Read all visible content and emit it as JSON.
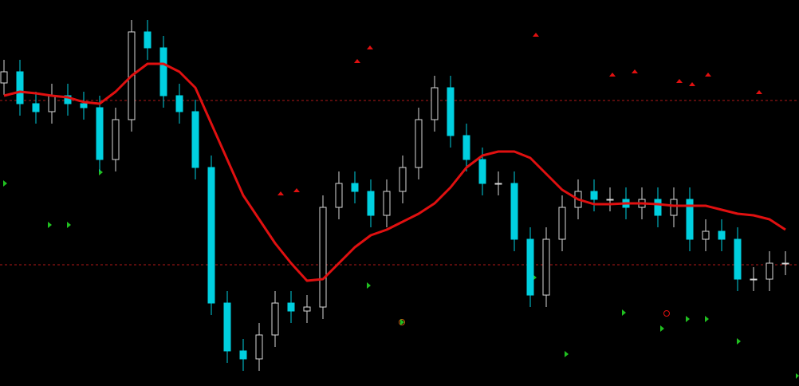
{
  "chart_data": {
    "type": "candlestick",
    "ylim": [
      0,
      484
    ],
    "open": [
      380,
      394,
      354,
      344,
      364,
      354,
      349,
      284,
      334,
      444,
      424,
      364,
      344,
      274,
      104,
      44,
      34,
      64,
      104,
      94,
      99,
      224,
      254,
      244,
      214,
      244,
      274,
      334,
      374,
      314,
      284,
      254,
      254,
      184,
      114,
      184,
      224,
      244,
      234,
      234,
      224,
      234,
      214,
      234,
      184,
      194,
      184,
      134,
      134,
      154
    ],
    "high": [
      409,
      409,
      369,
      379,
      379,
      369,
      364,
      349,
      459,
      459,
      439,
      379,
      359,
      289,
      119,
      59,
      79,
      119,
      119,
      114,
      239,
      269,
      269,
      259,
      259,
      289,
      349,
      389,
      389,
      329,
      299,
      269,
      269,
      199,
      199,
      239,
      259,
      259,
      249,
      249,
      249,
      249,
      249,
      249,
      209,
      209,
      199,
      149,
      169,
      169
    ],
    "low": [
      365,
      339,
      329,
      329,
      339,
      334,
      269,
      269,
      319,
      409,
      349,
      329,
      259,
      89,
      29,
      19,
      19,
      49,
      79,
      79,
      84,
      209,
      229,
      199,
      199,
      229,
      259,
      319,
      299,
      269,
      239,
      239,
      169,
      99,
      99,
      169,
      209,
      219,
      219,
      209,
      209,
      199,
      199,
      169,
      169,
      169,
      119,
      119,
      119,
      139
    ],
    "close": [
      394,
      354,
      344,
      364,
      354,
      349,
      284,
      334,
      444,
      424,
      364,
      344,
      274,
      104,
      44,
      34,
      64,
      104,
      94,
      99,
      224,
      254,
      244,
      214,
      244,
      274,
      334,
      374,
      314,
      284,
      254,
      254,
      184,
      114,
      184,
      224,
      244,
      234,
      234,
      224,
      234,
      214,
      234,
      184,
      194,
      184,
      134,
      134,
      154,
      154
    ],
    "up_color": "#d8d8d8",
    "down_color": "#00d0e0",
    "series": [
      {
        "color": "#e01010",
        "values": [
          364,
          369,
          367,
          364,
          362,
          356,
          354,
          369,
          389,
          404,
          404,
          394,
          374,
          329,
          284,
          239,
          209,
          179,
          154,
          132,
          134,
          154,
          174,
          189,
          196,
          206,
          216,
          229,
          249,
          274,
          289,
          294,
          294,
          286,
          266,
          246,
          234,
          228,
          228,
          229,
          229,
          228,
          226,
          226,
          226,
          221,
          216,
          214,
          209,
          196
        ]
      }
    ],
    "levels": [
      358,
      152
    ],
    "level_color": "#b01818"
  }
}
